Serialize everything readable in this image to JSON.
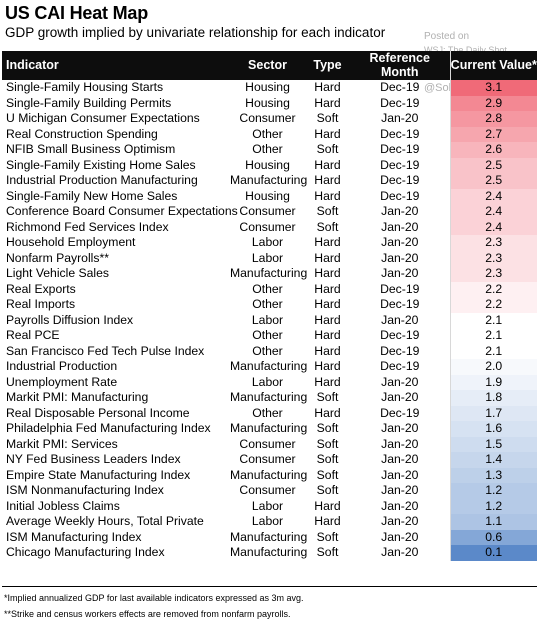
{
  "title": "US CAI Heat Map",
  "subtitle": "GDP growth implied by univariate relationship for each indicator",
  "watermark": {
    "line1": "Posted on",
    "line2": "WSJ: The Daily Shot",
    "line3": "@SoberLook"
  },
  "columns": {
    "indicator": "Indicator",
    "sector": "Sector",
    "type": "Type",
    "month": "Reference Month",
    "value": "Current Value*"
  },
  "colors": {
    "high": "#f06a78",
    "mid": "#ffffff",
    "low": "#5b89c9",
    "header_bg": "#0d0d0d"
  },
  "chart_data": {
    "type": "table",
    "title": "US CAI Heat Map",
    "subtitle": "GDP growth implied by univariate relationship for each indicator",
    "rows": [
      {
        "indicator": "Single-Family Housing Starts",
        "sector": "Housing",
        "type": "Hard",
        "month": "Dec-19",
        "value": 3.1
      },
      {
        "indicator": "Single-Family Building Permits",
        "sector": "Housing",
        "type": "Hard",
        "month": "Dec-19",
        "value": 2.9
      },
      {
        "indicator": "U Michigan Consumer Expectations",
        "sector": "Consumer",
        "type": "Soft",
        "month": "Jan-20",
        "value": 2.8
      },
      {
        "indicator": "Real Construction Spending",
        "sector": "Other",
        "type": "Hard",
        "month": "Dec-19",
        "value": 2.7
      },
      {
        "indicator": "NFIB Small Business Optimism",
        "sector": "Other",
        "type": "Soft",
        "month": "Dec-19",
        "value": 2.6
      },
      {
        "indicator": "Single-Family Existing Home Sales",
        "sector": "Housing",
        "type": "Hard",
        "month": "Dec-19",
        "value": 2.5
      },
      {
        "indicator": "Industrial Production Manufacturing",
        "sector": "Manufacturing",
        "type": "Hard",
        "month": "Dec-19",
        "value": 2.5
      },
      {
        "indicator": "Single-Family New Home Sales",
        "sector": "Housing",
        "type": "Hard",
        "month": "Dec-19",
        "value": 2.4
      },
      {
        "indicator": "Conference Board Consumer Expectations",
        "sector": "Consumer",
        "type": "Soft",
        "month": "Jan-20",
        "value": 2.4
      },
      {
        "indicator": "Richmond Fed Services Index",
        "sector": "Consumer",
        "type": "Soft",
        "month": "Jan-20",
        "value": 2.4
      },
      {
        "indicator": "Household Employment",
        "sector": "Labor",
        "type": "Hard",
        "month": "Jan-20",
        "value": 2.3
      },
      {
        "indicator": "Nonfarm Payrolls**",
        "sector": "Labor",
        "type": "Hard",
        "month": "Jan-20",
        "value": 2.3
      },
      {
        "indicator": "Light Vehicle Sales",
        "sector": "Manufacturing",
        "type": "Hard",
        "month": "Jan-20",
        "value": 2.3
      },
      {
        "indicator": "Real Exports",
        "sector": "Other",
        "type": "Hard",
        "month": "Dec-19",
        "value": 2.2
      },
      {
        "indicator": "Real Imports",
        "sector": "Other",
        "type": "Hard",
        "month": "Dec-19",
        "value": 2.2
      },
      {
        "indicator": "Payrolls Diffusion Index",
        "sector": "Labor",
        "type": "Hard",
        "month": "Jan-20",
        "value": 2.1
      },
      {
        "indicator": "Real PCE",
        "sector": "Other",
        "type": "Hard",
        "month": "Dec-19",
        "value": 2.1
      },
      {
        "indicator": "San Francisco Fed Tech Pulse Index",
        "sector": "Other",
        "type": "Hard",
        "month": "Dec-19",
        "value": 2.1
      },
      {
        "indicator": "Industrial Production",
        "sector": "Manufacturing",
        "type": "Hard",
        "month": "Dec-19",
        "value": 2.0
      },
      {
        "indicator": "Unemployment Rate",
        "sector": "Labor",
        "type": "Hard",
        "month": "Jan-20",
        "value": 1.9
      },
      {
        "indicator": "Markit PMI: Manufacturing",
        "sector": "Manufacturing",
        "type": "Soft",
        "month": "Jan-20",
        "value": 1.8
      },
      {
        "indicator": "Real Disposable Personal Income",
        "sector": "Other",
        "type": "Hard",
        "month": "Dec-19",
        "value": 1.7
      },
      {
        "indicator": "Philadelphia Fed Manufacturing Index",
        "sector": "Manufacturing",
        "type": "Soft",
        "month": "Jan-20",
        "value": 1.6
      },
      {
        "indicator": "Markit PMI: Services",
        "sector": "Consumer",
        "type": "Soft",
        "month": "Jan-20",
        "value": 1.5
      },
      {
        "indicator": "NY Fed Business Leaders Index",
        "sector": "Consumer",
        "type": "Soft",
        "month": "Jan-20",
        "value": 1.4
      },
      {
        "indicator": "Empire State Manufacturing Index",
        "sector": "Manufacturing",
        "type": "Soft",
        "month": "Jan-20",
        "value": 1.3
      },
      {
        "indicator": "ISM Nonmanufacturing Index",
        "sector": "Consumer",
        "type": "Soft",
        "month": "Jan-20",
        "value": 1.2
      },
      {
        "indicator": "Initial Jobless Claims",
        "sector": "Labor",
        "type": "Hard",
        "month": "Jan-20",
        "value": 1.2
      },
      {
        "indicator": "Average Weekly Hours, Total Private",
        "sector": "Labor",
        "type": "Hard",
        "month": "Jan-20",
        "value": 1.1
      },
      {
        "indicator": "ISM Manufacturing Index",
        "sector": "Manufacturing",
        "type": "Soft",
        "month": "Jan-20",
        "value": 0.6
      },
      {
        "indicator": "Chicago Manufacturing Index",
        "sector": "Manufacturing",
        "type": "Soft",
        "month": "Jan-20",
        "value": 0.1
      }
    ]
  },
  "footnotes": [
    "*Implied annualized GDP for last available indicators expressed as 3m avg.",
    "**Strike and census workers effects are removed from nonfarm payrolls."
  ]
}
